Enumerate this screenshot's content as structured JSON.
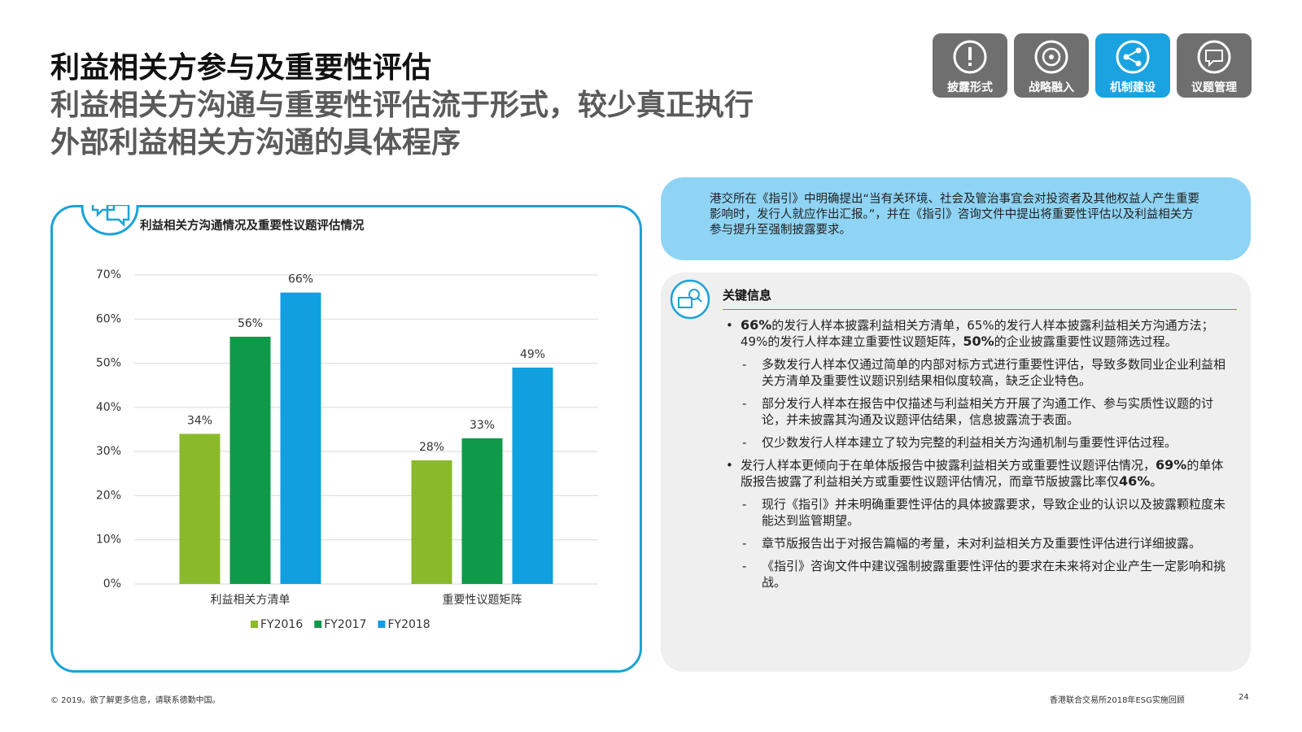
{
  "header": {
    "title": "利益相关方参与及重要性评估",
    "subtitle_lines": [
      "利益相关方沟通与重要性评估流于形式，较少真正执行",
      "外部利益相关方沟通的具体程序"
    ]
  },
  "tabs": [
    "披露形式",
    "战略融入",
    "机制建设",
    "议题管理"
  ],
  "chart_data": {
    "type": "bar",
    "title": "利益相关方沟通情况及重要性议题评估情况",
    "categories": [
      "利益相关方清单",
      "重要性议题矩阵"
    ],
    "series": [
      {
        "name": "FY2016",
        "color": "#8aba2b",
        "values": [
          34,
          28
        ],
        "value_labels": [
          "34%",
          "28%"
        ]
      },
      {
        "name": "FY2017",
        "color": "#0f9a4a",
        "values": [
          56,
          33
        ],
        "value_labels": [
          "56%",
          "33%"
        ]
      },
      {
        "name": "FY2018",
        "color": "#10a0e0",
        "values": [
          66,
          49
        ],
        "value_labels": [
          "66%",
          "49%"
        ]
      }
    ],
    "ylim": [
      0,
      70
    ],
    "yticks": [
      {
        "value": 0,
        "label": "0%"
      },
      {
        "value": 10,
        "label": "10%"
      },
      {
        "value": 20,
        "label": "20%"
      },
      {
        "value": 30,
        "label": "30%"
      },
      {
        "value": 40,
        "label": "40%"
      },
      {
        "value": 50,
        "label": "50%"
      },
      {
        "value": 60,
        "label": "60%"
      },
      {
        "value": 70,
        "label": "70%"
      }
    ],
    "grid": true
  },
  "info_box": "港交所在《指引》中明确提出“当有关环境、社会及管治事宜会对投资者及其他权益人产生重要影响时，发行人就应作出汇报。”，并在《指引》咨询文件中提出将重要性评估以及利益相关方参与提升至强制披露要求。",
  "key_info": {
    "title": "关键信息",
    "items": [
      {
        "text": [
          {
            "text": "66%",
            "bold": true
          },
          {
            "text": "的发行人样本披露利益相关方清单，65%的发行人样本披露利益相关方沟通方法；49%的发行人样本建立重要性议题矩阵，"
          },
          {
            "text": "50%",
            "bold": true
          },
          {
            "text": "的企业披露重要性议题筛选过程。"
          }
        ],
        "subitems": [
          "多数发行人样本仅通过简单的内部对标方式进行重要性评估，导致多数同业企业利益相关方清单及重要性议题识别结果相似度较高，缺乏企业特色。",
          "部分发行人样本在报告中仅描述与利益相关方开展了沟通工作、参与实质性议题的讨论，并未披露其沟通及议题评估结果，信息披露流于表面。",
          "仅少数发行人样本建立了较为完整的利益相关方沟通机制与重要性评估过程。"
        ]
      },
      {
        "text": [
          {
            "text": "发行人样本更倾向于在单体版报告中披露利益相关方或重要性议题评估情况，"
          },
          {
            "text": "69%",
            "bold": true
          },
          {
            "text": "的单体版报告披露了利益相关方或重要性议题评估情况，而章节版披露比率仅"
          },
          {
            "text": "46%",
            "bold": true
          },
          {
            "text": "。"
          }
        ],
        "subitems": [
          "现行《指引》并未明确重要性评估的具体披露要求，导致企业的认识以及披露颗粒度未能达到监管期望。",
          "章节版报告出于对报告篇幅的考量，未对利益相关方及重要性评估进行详细披露。",
          "《指引》咨询文件中建议强制披露重要性评估的要求在未来将对企业产生一定影响和挑战。"
        ]
      }
    ]
  },
  "footer": {
    "left": "© 2019。欲了解更多信息，请联系德勤中国。",
    "right": "香港联合交易所2018年ESG实施回顾",
    "page": 24
  }
}
